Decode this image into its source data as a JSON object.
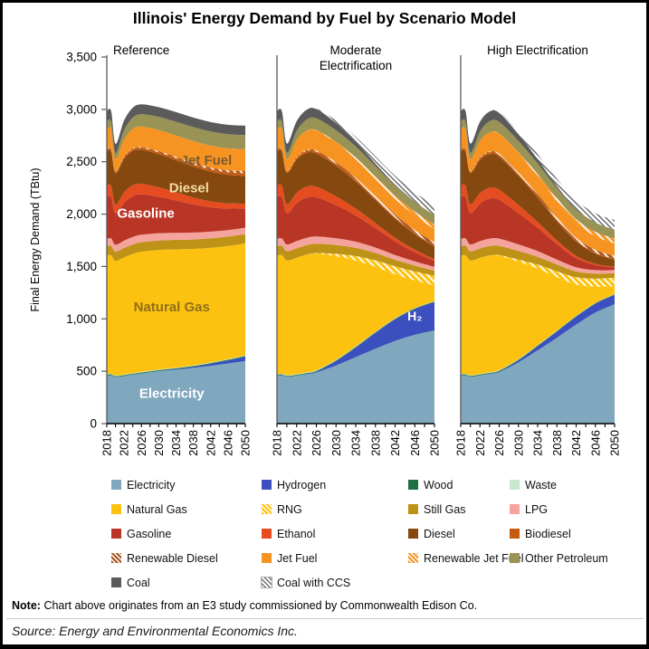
{
  "title": "Illinois' Energy Demand by Fuel by Scenario Model",
  "y_axis": {
    "label": "Final Energy Demand (TBtu)",
    "ticks": [
      {
        "label": "0",
        "value": 0
      },
      {
        "label": "500",
        "value": 500
      },
      {
        "label": "1,000",
        "value": 1000
      },
      {
        "label": "1,500",
        "value": 1500
      },
      {
        "label": "2,000",
        "value": 2000
      },
      {
        "label": "2,500",
        "value": 2500
      },
      {
        "label": "3,000",
        "value": 3000
      },
      {
        "label": "3,500",
        "value": 3500
      }
    ]
  },
  "x_axis": {
    "tick_labels": [
      "2018",
      "2022",
      "2026",
      "2030",
      "2034",
      "2038",
      "2042",
      "2046",
      "2050"
    ],
    "minor_tick_step": 2
  },
  "chart_data": {
    "type": "area",
    "stacked": true,
    "title": "Illinois' Energy Demand by Fuel by Scenario Model",
    "ylabel": "Final Energy Demand (TBtu)",
    "ylim": [
      0,
      3500
    ],
    "grid": false,
    "legend_position": "bottom",
    "x": [
      2018,
      2019,
      2020,
      2022,
      2024,
      2026,
      2030,
      2034,
      2038,
      2042,
      2046,
      2050
    ],
    "panels": [
      {
        "id": "reference",
        "title": "Reference"
      },
      {
        "id": "moderate",
        "title": "Moderate Electrification"
      },
      {
        "id": "high",
        "title": "High Electrification"
      }
    ],
    "series": [
      {
        "key": "electricity",
        "name": "Electricity",
        "color": "#7FA7BE",
        "values": {
          "reference": [
            460,
            462,
            445,
            455,
            468,
            480,
            500,
            515,
            532,
            552,
            574,
            598
          ],
          "moderate": [
            460,
            462,
            448,
            458,
            472,
            488,
            555,
            635,
            715,
            790,
            848,
            890
          ],
          "high": [
            460,
            462,
            448,
            460,
            475,
            492,
            585,
            700,
            820,
            945,
            1060,
            1140
          ]
        }
      },
      {
        "key": "hydrogen",
        "name": "Hydrogen",
        "color": "#3B50BE",
        "values": {
          "reference": [
            0,
            0,
            0,
            0,
            0,
            0,
            2,
            5,
            10,
            18,
            28,
            40
          ],
          "moderate": [
            0,
            0,
            0,
            0,
            3,
            8,
            40,
            90,
            150,
            205,
            245,
            270
          ],
          "high": [
            0,
            0,
            0,
            0,
            2,
            5,
            18,
            38,
            58,
            74,
            84,
            90
          ]
        }
      },
      {
        "key": "wood",
        "name": "Wood",
        "color": "#1D7044",
        "values": {
          "reference": [
            8,
            8,
            8,
            8,
            8,
            8,
            8,
            8,
            8,
            8,
            8,
            8
          ],
          "moderate": [
            8,
            8,
            8,
            8,
            8,
            8,
            8,
            7,
            7,
            6,
            6,
            6
          ],
          "high": [
            8,
            8,
            8,
            8,
            8,
            8,
            7,
            7,
            6,
            6,
            5,
            5
          ]
        }
      },
      {
        "key": "waste",
        "name": "Waste",
        "color": "#C7E8CE",
        "values": {
          "reference": [
            6,
            6,
            6,
            6,
            6,
            6,
            6,
            6,
            6,
            6,
            6,
            6
          ],
          "moderate": [
            6,
            6,
            6,
            6,
            6,
            6,
            6,
            6,
            5,
            5,
            4,
            4
          ],
          "high": [
            6,
            6,
            6,
            6,
            6,
            6,
            6,
            5,
            5,
            4,
            4,
            3
          ]
        }
      },
      {
        "key": "natural_gas",
        "name": "Natural Gas",
        "color": "#FDC20F",
        "values": {
          "reference": [
            1130,
            1132,
            1095,
            1118,
            1138,
            1148,
            1142,
            1130,
            1112,
            1095,
            1080,
            1068
          ],
          "moderate": [
            1130,
            1132,
            1095,
            1112,
            1122,
            1112,
            990,
            820,
            620,
            420,
            265,
            150
          ],
          "high": [
            1130,
            1132,
            1095,
            1108,
            1112,
            1092,
            930,
            730,
            510,
            300,
            155,
            75
          ]
        }
      },
      {
        "key": "rng",
        "name": "RNG",
        "color": "#FDC20F",
        "hatch": "#FFFFFF",
        "values": {
          "reference": [
            0,
            0,
            0,
            0,
            0,
            0,
            0,
            0,
            0,
            0,
            0,
            0
          ],
          "moderate": [
            0,
            0,
            0,
            0,
            2,
            6,
            22,
            42,
            62,
            76,
            86,
            90
          ],
          "high": [
            0,
            0,
            0,
            0,
            2,
            6,
            20,
            38,
            56,
            68,
            76,
            80
          ]
        }
      },
      {
        "key": "still_gas",
        "name": "Still Gas",
        "color": "#BD9217",
        "values": {
          "reference": [
            90,
            90,
            88,
            90,
            90,
            90,
            90,
            90,
            90,
            90,
            90,
            90
          ],
          "moderate": [
            90,
            90,
            88,
            90,
            90,
            89,
            84,
            78,
            70,
            62,
            55,
            50
          ],
          "high": [
            90,
            90,
            88,
            90,
            90,
            88,
            82,
            74,
            64,
            56,
            48,
            44
          ]
        }
      },
      {
        "key": "lpg",
        "name": "LPG",
        "color": "#F4A49C",
        "values": {
          "reference": [
            70,
            70,
            66,
            70,
            72,
            72,
            70,
            68,
            66,
            64,
            62,
            60
          ],
          "moderate": [
            70,
            70,
            66,
            70,
            71,
            70,
            65,
            59,
            52,
            46,
            40,
            36
          ],
          "high": [
            70,
            70,
            66,
            70,
            71,
            69,
            63,
            55,
            47,
            40,
            34,
            30
          ]
        }
      },
      {
        "key": "gasoline",
        "name": "Gasoline",
        "color": "#B93526",
        "values": {
          "reference": [
            400,
            396,
            298,
            362,
            390,
            384,
            348,
            308,
            268,
            232,
            205,
            185
          ],
          "moderate": [
            400,
            396,
            298,
            360,
            384,
            374,
            316,
            250,
            185,
            130,
            88,
            58
          ],
          "high": [
            400,
            396,
            298,
            358,
            382,
            370,
            298,
            222,
            148,
            88,
            48,
            24
          ]
        }
      },
      {
        "key": "ethanol",
        "name": "Ethanol",
        "color": "#E54C20",
        "values": {
          "reference": [
            110,
            108,
            84,
            100,
            105,
            102,
            90,
            78,
            67,
            57,
            50,
            45
          ],
          "moderate": [
            110,
            108,
            84,
            100,
            104,
            100,
            84,
            66,
            48,
            34,
            23,
            15
          ],
          "high": [
            110,
            108,
            84,
            100,
            103,
            98,
            78,
            56,
            36,
            21,
            11,
            6
          ]
        }
      },
      {
        "key": "diesel",
        "name": "Diesel",
        "color": "#85490F",
        "values": {
          "reference": [
            325,
            324,
            298,
            318,
            325,
            324,
            316,
            306,
            295,
            284,
            273,
            265
          ],
          "moderate": [
            325,
            324,
            298,
            317,
            322,
            318,
            292,
            258,
            220,
            182,
            148,
            120
          ],
          "high": [
            325,
            324,
            298,
            316,
            320,
            314,
            278,
            232,
            182,
            136,
            98,
            68
          ]
        }
      },
      {
        "key": "biodiesel",
        "name": "Biodiesel",
        "color": "#C55A11",
        "values": {
          "reference": [
            18,
            18,
            15,
            18,
            18,
            18,
            19,
            20,
            21,
            22,
            24,
            25
          ],
          "moderate": [
            18,
            18,
            15,
            18,
            18,
            18,
            18,
            17,
            15,
            13,
            11,
            10
          ],
          "high": [
            18,
            18,
            15,
            18,
            18,
            18,
            17,
            15,
            13,
            11,
            9,
            8
          ]
        }
      },
      {
        "key": "renewable_diesel",
        "name": "Renewable Diesel",
        "color": "#A5541E",
        "hatch": "#FFFFFF",
        "values": {
          "reference": [
            5,
            5,
            4,
            6,
            7,
            8,
            10,
            12,
            14,
            16,
            18,
            20
          ],
          "moderate": [
            5,
            5,
            4,
            6,
            8,
            10,
            14,
            18,
            22,
            26,
            29,
            30
          ],
          "high": [
            5,
            5,
            4,
            6,
            8,
            10,
            14,
            18,
            22,
            25,
            27,
            28
          ]
        }
      },
      {
        "key": "jet_fuel",
        "name": "Jet Fuel",
        "color": "#F79421",
        "values": {
          "reference": [
            190,
            192,
            118,
            162,
            186,
            196,
            201,
            205,
            208,
            210,
            210,
            210
          ],
          "moderate": [
            190,
            192,
            118,
            161,
            184,
            192,
            188,
            178,
            164,
            150,
            138,
            128
          ],
          "high": [
            190,
            192,
            118,
            160,
            183,
            190,
            185,
            174,
            158,
            143,
            130,
            120
          ]
        }
      },
      {
        "key": "renewable_jet_fuel",
        "name": "Renewable Jet Fuel",
        "color": "#F79421",
        "hatch": "#FFFFFF",
        "values": {
          "reference": [
            0,
            0,
            0,
            0,
            0,
            0,
            0,
            0,
            0,
            0,
            0,
            0
          ],
          "moderate": [
            0,
            0,
            0,
            0,
            1,
            3,
            9,
            17,
            25,
            33,
            39,
            44
          ],
          "high": [
            0,
            0,
            0,
            0,
            1,
            3,
            10,
            18,
            27,
            35,
            42,
            47
          ]
        }
      },
      {
        "key": "other_petroleum",
        "name": "Other Petroleum",
        "color": "#999355",
        "values": {
          "reference": [
            72,
            72,
            58,
            88,
            108,
            118,
            126,
            131,
            134,
            135,
            135,
            135
          ],
          "moderate": [
            72,
            72,
            58,
            88,
            106,
            113,
            110,
            104,
            99,
            94,
            91,
            88
          ],
          "high": [
            72,
            72,
            58,
            88,
            105,
            112,
            108,
            102,
            96,
            91,
            87,
            84
          ]
        }
      },
      {
        "key": "coal",
        "name": "Coal",
        "color": "#5B5B5B",
        "values": {
          "reference": [
            100,
            100,
            88,
            94,
            95,
            95,
            93,
            92,
            91,
            90,
            90,
            90
          ],
          "moderate": [
            100,
            100,
            88,
            94,
            94,
            88,
            68,
            44,
            24,
            10,
            4,
            0
          ],
          "high": [
            100,
            100,
            88,
            94,
            93,
            86,
            64,
            40,
            20,
            7,
            2,
            0
          ]
        }
      },
      {
        "key": "coal_ccs",
        "name": "Coal with CCS",
        "color": "#FFFFFF",
        "hatch": "#6E6E6E",
        "values": {
          "reference": [
            0,
            0,
            0,
            0,
            0,
            0,
            0,
            0,
            0,
            0,
            0,
            0
          ],
          "moderate": [
            0,
            0,
            0,
            0,
            1,
            6,
            26,
            50,
            70,
            83,
            89,
            92
          ],
          "high": [
            0,
            0,
            0,
            0,
            1,
            6,
            26,
            50,
            70,
            83,
            89,
            92
          ]
        }
      }
    ],
    "annotations": [
      {
        "panel": 0,
        "text": "Jet Fuel",
        "year": 2041,
        "value": 2470,
        "color": "#7A5B33",
        "size": 15
      },
      {
        "panel": 0,
        "text": "Diesel",
        "year": 2037,
        "value": 2210,
        "color": "#F4DCA8",
        "size": 15
      },
      {
        "panel": 0,
        "text": "Gasoline",
        "year": 2027,
        "value": 1965,
        "color": "#FFFFFF",
        "size": 15
      },
      {
        "panel": 0,
        "text": "Natural Gas",
        "year": 2033,
        "value": 1070,
        "color": "#8F6F1C",
        "size": 15
      },
      {
        "panel": 0,
        "text": "Electricity",
        "year": 2033,
        "value": 245,
        "color": "#FFFFFF",
        "size": 15
      },
      {
        "panel": 1,
        "text": "H₂",
        "year": 2046,
        "value": 985,
        "color": "#FFFFFF",
        "size": 14
      }
    ]
  },
  "note": {
    "label": "Note:",
    "text": "Chart above originates from an E3 study commissioned by Commonwealth Edison Co."
  },
  "source": "Source: Energy and Environmental Economics Inc."
}
